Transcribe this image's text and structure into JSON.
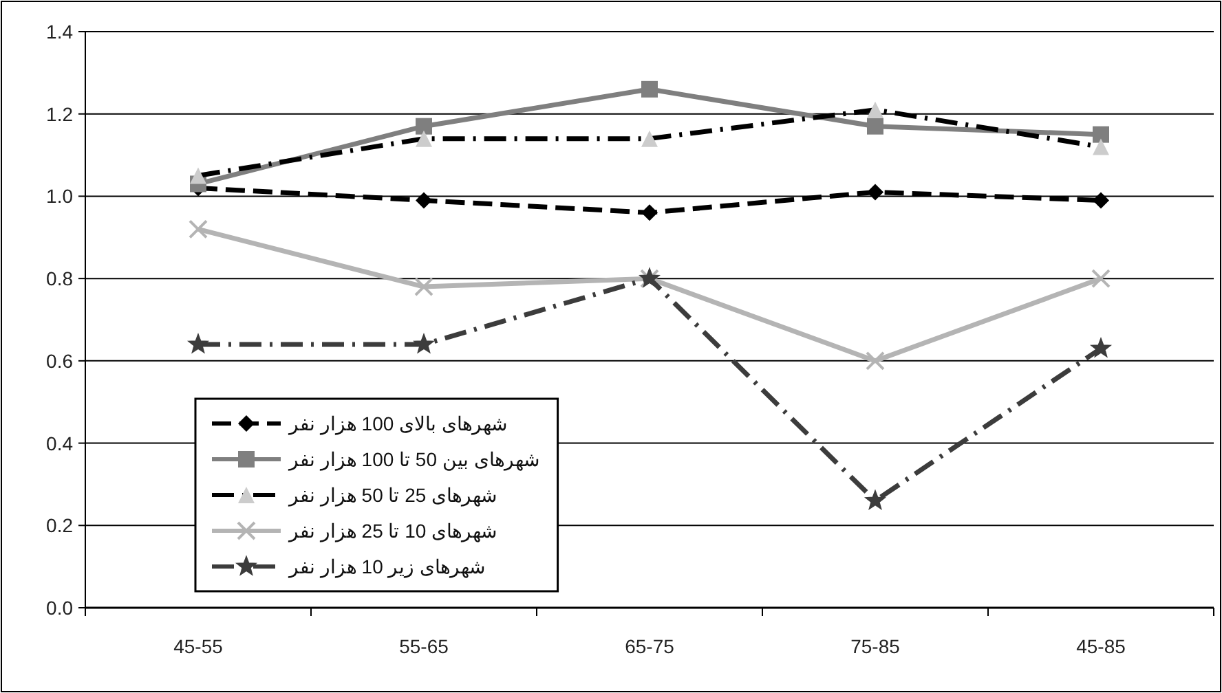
{
  "chart_data": {
    "type": "line",
    "categories": [
      "45-55",
      "55-65",
      "65-75",
      "75-85",
      "45-85"
    ],
    "ylim": [
      0,
      1.4
    ],
    "yticks": [
      {
        "value": 0,
        "label": "0.0"
      },
      0.2,
      0.4,
      0.6,
      0.8,
      {
        "value": 1,
        "label": "1.0"
      },
      1.2,
      1.4
    ],
    "grid": "y",
    "legend": "bottom left",
    "series": [
      {
        "name": "شهرهای بالای 100 هزار نفر",
        "color": "#000000",
        "marker": "diamond",
        "line_style": "dashed",
        "values": [
          1.02,
          0.99,
          0.96,
          1.01,
          0.99
        ]
      },
      {
        "name": "شهرهای بین 50 تا 100 هزار نفر",
        "color": "#7f7f7f",
        "marker": "square",
        "line_style": "solid",
        "values": [
          1.03,
          1.17,
          1.26,
          1.17,
          1.15
        ]
      },
      {
        "name": "شهرهای 25 تا 50 هزار نفر",
        "color": "#000000",
        "marker": "triangle",
        "line_style": "dashdot",
        "values": [
          1.05,
          1.14,
          1.14,
          1.21,
          1.12
        ]
      },
      {
        "name": "شهرهای 10 تا 25 هزار نفر",
        "color": "#b4b4b4",
        "marker": "cross",
        "line_style": "solid",
        "values": [
          0.92,
          0.78,
          0.8,
          0.6,
          0.8
        ]
      },
      {
        "name": "شهرهای زیر 10 هزار نفر",
        "color": "#3c3c3c",
        "marker": "star",
        "line_style": "dashdot",
        "values": [
          0.64,
          0.64,
          0.8,
          0.26,
          0.63
        ]
      }
    ]
  }
}
